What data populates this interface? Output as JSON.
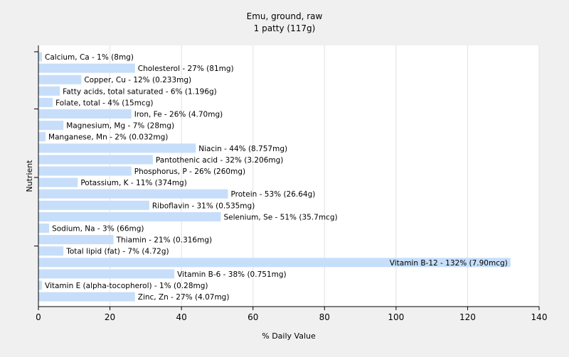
{
  "chart_data": {
    "type": "bar",
    "orientation": "horizontal",
    "title": "Emu, ground, raw",
    "subtitle": "1 patty (117g)",
    "xlabel": "% Daily Value",
    "ylabel": "Nutrient",
    "xlim": [
      0,
      140
    ],
    "x_ticks": [
      0,
      20,
      40,
      60,
      80,
      100,
      120,
      140
    ],
    "grid": true,
    "bar_color": "#c6defa",
    "categories": [
      "Calcium, Ca",
      "Cholesterol",
      "Copper, Cu",
      "Fatty acids, total saturated",
      "Folate, total",
      "Iron, Fe",
      "Magnesium, Mg",
      "Manganese, Mn",
      "Niacin",
      "Pantothenic acid",
      "Phosphorus, P",
      "Potassium, K",
      "Protein",
      "Riboflavin",
      "Selenium, Se",
      "Sodium, Na",
      "Thiamin",
      "Total lipid (fat)",
      "Vitamin B-12",
      "Vitamin B-6",
      "Vitamin E (alpha-tocopherol)",
      "Zinc, Zn"
    ],
    "values": [
      1,
      27,
      12,
      6,
      4,
      26,
      7,
      2,
      44,
      32,
      26,
      11,
      53,
      31,
      51,
      3,
      21,
      7,
      132,
      38,
      1,
      27
    ],
    "labels": [
      "Calcium, Ca - 1% (8mg)",
      "Cholesterol - 27% (81mg)",
      "Copper, Cu - 12% (0.233mg)",
      "Fatty acids, total saturated - 6% (1.196g)",
      "Folate, total - 4% (15mcg)",
      "Iron, Fe - 26% (4.70mg)",
      "Magnesium, Mg - 7% (28mg)",
      "Manganese, Mn - 2% (0.032mg)",
      "Niacin - 44% (8.757mg)",
      "Pantothenic acid - 32% (3.206mg)",
      "Phosphorus, P - 26% (260mg)",
      "Potassium, K - 11% (374mg)",
      "Protein - 53% (26.64g)",
      "Riboflavin - 31% (0.535mg)",
      "Selenium, Se - 51% (35.7mcg)",
      "Sodium, Na - 3% (66mg)",
      "Thiamin - 21% (0.316mg)",
      "Total lipid (fat) - 7% (4.72g)",
      "Vitamin B-12 - 132% (7.90mcg)",
      "Vitamin B-6 - 38% (0.751mg)",
      "Vitamin E (alpha-tocopherol) - 1% (0.28mg)",
      "Zinc, Zn - 27% (4.07mg)"
    ]
  }
}
